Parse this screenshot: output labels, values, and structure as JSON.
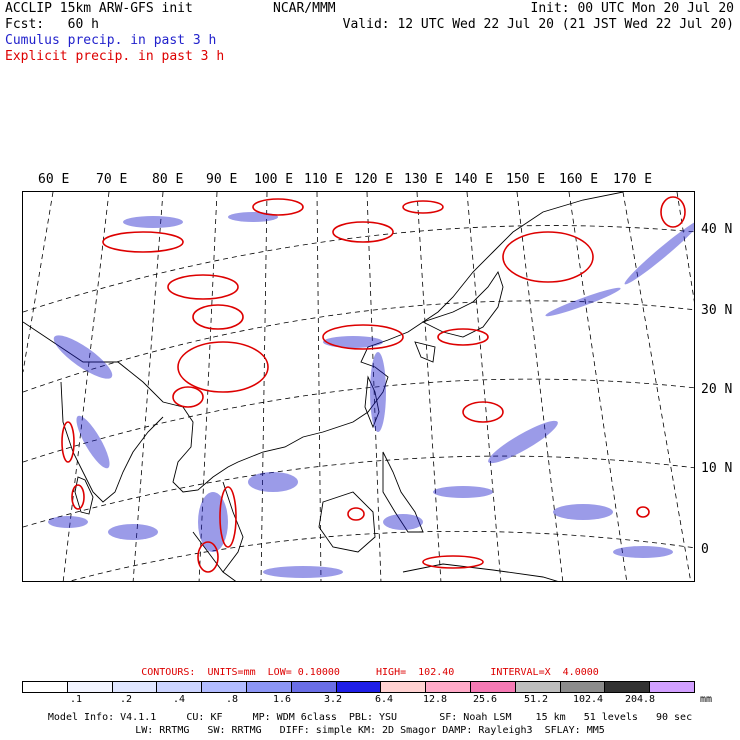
{
  "header": {
    "title": "ACCLIP 15km ARW-GFS init",
    "fcst": "Fcst:   60 h",
    "center": "NCAR/MMM",
    "init": "Init: 00 UTC Mon 20 Jul 20",
    "valid": "Valid: 12 UTC Wed 22 Jul 20 (21 JST Wed 22 Jul 20)",
    "cumulus": "Cumulus precip. in past 3 h",
    "explicit": "Explicit precip. in past 3 h"
  },
  "map": {
    "lon_labels": [
      "60 E",
      "70 E",
      "80 E",
      "90 E",
      "100 E",
      "110 E",
      "120 E",
      "130 E",
      "140 E",
      "150 E",
      "160 E",
      "170 E"
    ],
    "lat_labels": [
      "40 N",
      "30 N",
      "20 N",
      "10 N",
      "0"
    ],
    "colors": {
      "cumulus": "#2222cc",
      "explicit": "#dd0000",
      "coast": "#000000"
    }
  },
  "contours": {
    "text": "CONTOURS:  UNITS=mm  LOW= 0.10000      HIGH=  102.40      INTERVAL=X  4.0000"
  },
  "colorbar": {
    "colors": [
      "#ffffff",
      "#f2f4ff",
      "#e0e6ff",
      "#ccd4ff",
      "#b2bcff",
      "#8c96f5",
      "#6a6ee6",
      "#1e1ee6",
      "#ffd2d2",
      "#ffaac8",
      "#f57ab4",
      "#bebebe",
      "#8c8c8c",
      "#323232",
      "#d2a0ff"
    ],
    "ticks": [
      ".1",
      ".2",
      ".4",
      ".8",
      "1.6",
      "3.2",
      "6.4",
      "12.8",
      "25.6",
      "51.2",
      "102.4",
      "204.8"
    ],
    "unit": "mm"
  },
  "footer": {
    "line1": "Model Info: V4.1.1     CU: KF     MP: WDM 6class  PBL: YSU       SF: Noah LSM    15 km   51 levels   90 sec",
    "line2": "LW: RRTMG   SW: RRTMG   DIFF: simple KM: 2D Smagor DAMP: Rayleigh3  SFLAY: MM5"
  }
}
